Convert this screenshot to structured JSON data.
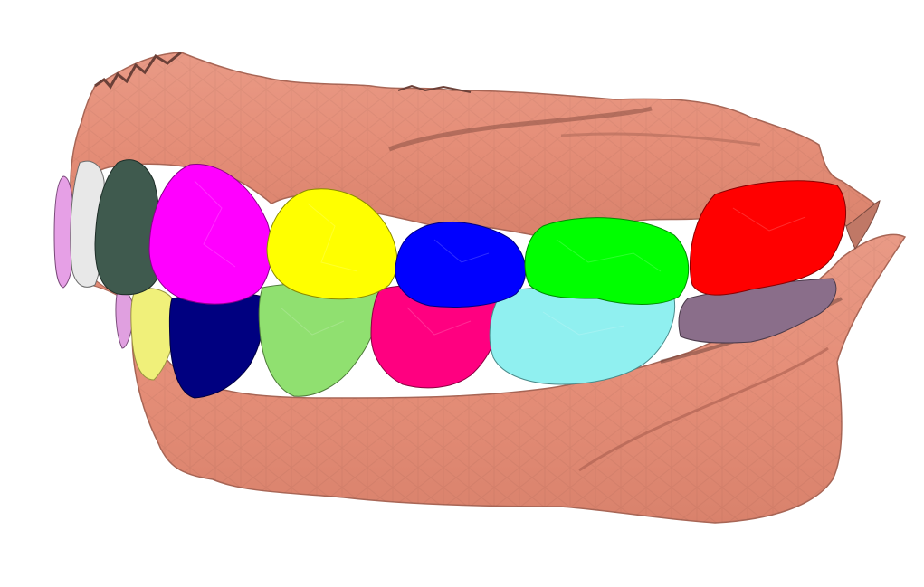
{
  "scene": {
    "background": "#ffffff",
    "gum_color": "#e8917c",
    "gum_shadow": "#b86a58",
    "gum_dark": "#7a4a40",
    "upper_teeth": [
      {
        "name": "tooth-upper-incisor-lilac",
        "color": "#e6a0e6"
      },
      {
        "name": "tooth-upper-incisor-white",
        "color": "#e8e8e8"
      },
      {
        "name": "tooth-upper-canine-darkgreen",
        "color": "#3f5a4e"
      },
      {
        "name": "tooth-upper-premolar-magenta",
        "color": "#ff00ff"
      },
      {
        "name": "tooth-upper-premolar-yellow",
        "color": "#ffff00"
      },
      {
        "name": "tooth-upper-molar-blue",
        "color": "#0000ff"
      },
      {
        "name": "tooth-upper-molar-green",
        "color": "#00ff00"
      },
      {
        "name": "tooth-upper-molar-red",
        "color": "#ff0000"
      }
    ],
    "lower_teeth": [
      {
        "name": "tooth-lower-incisor-pink",
        "color": "#e0a0e0"
      },
      {
        "name": "tooth-lower-canine-paleyellow",
        "color": "#f0f07a"
      },
      {
        "name": "tooth-lower-premolar-navy",
        "color": "#000080"
      },
      {
        "name": "tooth-lower-premolar-lightgreen",
        "color": "#90e070"
      },
      {
        "name": "tooth-lower-molar-rose",
        "color": "#ff0080"
      },
      {
        "name": "tooth-lower-molar-cyan",
        "color": "#90f0f0"
      },
      {
        "name": "tooth-lower-molar-mauve",
        "color": "#8a6e8a"
      }
    ]
  }
}
